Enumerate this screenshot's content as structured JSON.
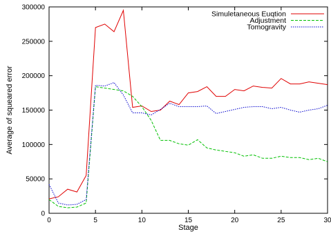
{
  "chart_data": {
    "type": "line",
    "title": "",
    "xlabel": "Stage",
    "ylabel": "Average of squeared error",
    "xlim": [
      0,
      30
    ],
    "ylim": [
      0,
      300000
    ],
    "xticks": [
      0,
      5,
      10,
      15,
      20,
      25,
      30
    ],
    "yticks": [
      0,
      50000,
      100000,
      150000,
      200000,
      250000,
      300000
    ],
    "grid": false,
    "legend_position": "top-right",
    "x": [
      0,
      1,
      2,
      3,
      4,
      5,
      6,
      7,
      8,
      9,
      10,
      11,
      12,
      13,
      14,
      15,
      16,
      17,
      18,
      19,
      20,
      21,
      22,
      23,
      24,
      25,
      26,
      27,
      28,
      29,
      30
    ],
    "series": [
      {
        "name": "Simuletaneous Euqtion",
        "color": "#e00000",
        "dash": "solid",
        "values": [
          21000,
          24000,
          35000,
          31000,
          55000,
          270000,
          275000,
          264000,
          295000,
          154000,
          156000,
          148000,
          150000,
          163000,
          158000,
          175000,
          177000,
          184000,
          170000,
          170000,
          180000,
          178000,
          185000,
          183000,
          182000,
          196000,
          188000,
          188000,
          191000,
          189000,
          187000
        ]
      },
      {
        "name": "Adjustment",
        "color": "#00c000",
        "dash": "dashed",
        "values": [
          20000,
          10000,
          8000,
          9000,
          15000,
          184000,
          182000,
          180000,
          178000,
          170000,
          155000,
          135000,
          106000,
          106000,
          101000,
          99000,
          107000,
          95000,
          92000,
          90000,
          88000,
          83000,
          85000,
          80000,
          80000,
          83000,
          81000,
          81000,
          78000,
          80000,
          75000
        ]
      },
      {
        "name": "Tomogravity",
        "color": "#0000cc",
        "dash": "dotted",
        "values": [
          42000,
          15000,
          12000,
          13000,
          20000,
          186000,
          185000,
          190000,
          172000,
          146000,
          146000,
          143000,
          151000,
          160000,
          155000,
          155000,
          155000,
          156000,
          145000,
          148000,
          151000,
          154000,
          155000,
          155000,
          152000,
          154000,
          150000,
          147000,
          150000,
          152000,
          157000
        ]
      }
    ]
  }
}
